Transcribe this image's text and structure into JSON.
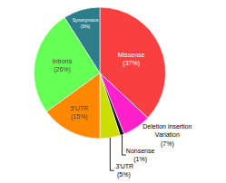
{
  "chart_data": {
    "type": "pie",
    "categories": [
      "Missense",
      "Deletion insertion\nVariation",
      "Nonsense",
      ".3'UTR",
      "5'UTR",
      "Introns",
      "Synonymous"
    ],
    "values": [
      37,
      7,
      1,
      5,
      15,
      26,
      9
    ],
    "value_labels": [
      "(37%)",
      "(7%)",
      "(1%)",
      "(5%)",
      "(15%)",
      "(26%)",
      "(9%)"
    ],
    "colors": [
      "#f94040",
      "#ff22cc",
      "#111111",
      "#ccdd00",
      "#ff8800",
      "#66ff55",
      "#2e7d8a"
    ],
    "data_labels": true,
    "legend": false
  }
}
